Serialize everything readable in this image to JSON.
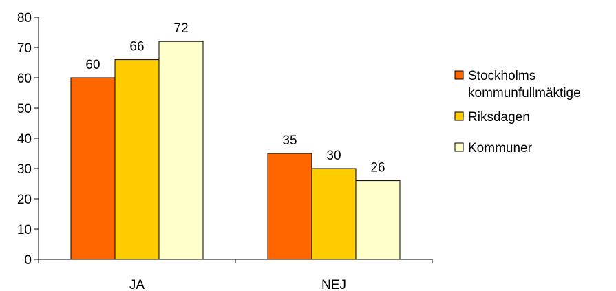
{
  "chart_data": {
    "type": "bar",
    "categories": [
      "JA",
      "NEJ"
    ],
    "series": [
      {
        "name": "Stockholms kommunfullmäktige",
        "name_lines": [
          "Stockholms",
          "kommunfullmäktige"
        ],
        "values": [
          60,
          35
        ],
        "color": "#FF6600"
      },
      {
        "name": "Riksdagen",
        "name_lines": [
          "Riksdagen"
        ],
        "values": [
          66,
          30
        ],
        "color": "#FFCC00"
      },
      {
        "name": "Kommuner",
        "name_lines": [
          "Kommuner"
        ],
        "values": [
          72,
          26
        ],
        "color": "#FFFFCC"
      }
    ],
    "ylim": [
      0,
      80
    ],
    "yticks": [
      0,
      10,
      20,
      30,
      40,
      50,
      60,
      70,
      80
    ],
    "grid": false,
    "legend_position": "right",
    "show_data_labels": true,
    "title": "",
    "xlabel": "",
    "ylabel": ""
  }
}
